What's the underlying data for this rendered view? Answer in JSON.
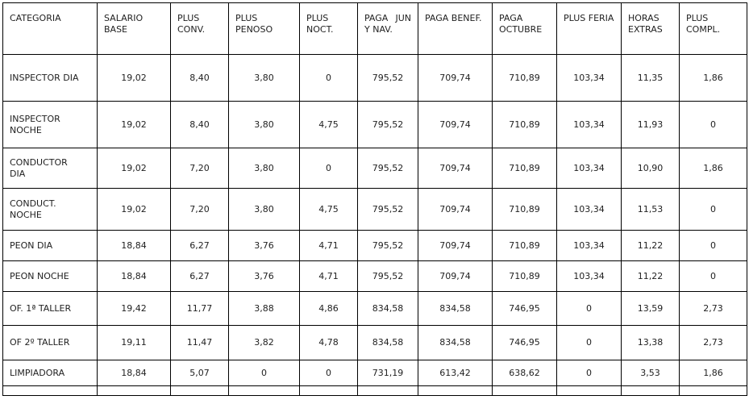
{
  "styles": {
    "border_color": "#000000",
    "text_color": "#1f1f1f",
    "background_color": "#ffffff"
  },
  "chart_data": {
    "type": "table",
    "columns": [
      "CATEGORIA",
      "SALARIO BASE",
      "PLUS CONV.",
      "PLUS PENOSO",
      "PLUS NOCT.",
      "PAGA JUN Y NAV.",
      "PAGA BENEF.",
      "PAGA OCTUBRE",
      "PLUS FERIA",
      "HORAS EXTRAS",
      "PLUS COMPL."
    ],
    "rows": [
      [
        "INSPECTOR DIA",
        "19,02",
        "8,40",
        "3,80",
        "0",
        "795,52",
        "709,74",
        "710,89",
        "103,34",
        "11,35",
        "1,86"
      ],
      [
        "INSPECTOR NOCHE",
        "19,02",
        "8,40",
        "3,80",
        "4,75",
        "795,52",
        "709,74",
        "710,89",
        "103,34",
        "11,93",
        "0"
      ],
      [
        "CONDUCTOR DIA",
        "19,02",
        "7,20",
        "3,80",
        "0",
        "795,52",
        "709,74",
        "710,89",
        "103,34",
        "10,90",
        "1,86"
      ],
      [
        "CONDUCT. NOCHE",
        "19,02",
        "7,20",
        "3,80",
        "4,75",
        "795,52",
        "709,74",
        "710,89",
        "103,34",
        "11,53",
        "0"
      ],
      [
        "PEON DIA",
        "18,84",
        "6,27",
        "3,76",
        "4,71",
        "795,52",
        "709,74",
        "710,89",
        "103,34",
        "11,22",
        "0"
      ],
      [
        "PEON NOCHE",
        "18,84",
        "6,27",
        "3,76",
        "4,71",
        "795,52",
        "709,74",
        "710,89",
        "103,34",
        "11,22",
        "0"
      ],
      [
        "OF. 1ª TALLER",
        "19,42",
        "11,77",
        "3,88",
        "4,86",
        "834,58",
        "834,58",
        "746,95",
        "0",
        "13,59",
        "2,73"
      ],
      [
        "OF 2º TALLER",
        "19,11",
        "11,47",
        "3,82",
        "4,78",
        "834,58",
        "834,58",
        "746,95",
        "0",
        "13,38",
        "2,73"
      ],
      [
        "LIMPIADORA",
        "18,84",
        "5,07",
        "0",
        "0",
        "731,19",
        "613,42",
        "638,62",
        "0",
        "3,53",
        "1,86"
      ],
      [
        "",
        "",
        "",
        "",
        "",
        "",
        "",
        "",
        "",
        "",
        ""
      ]
    ]
  }
}
